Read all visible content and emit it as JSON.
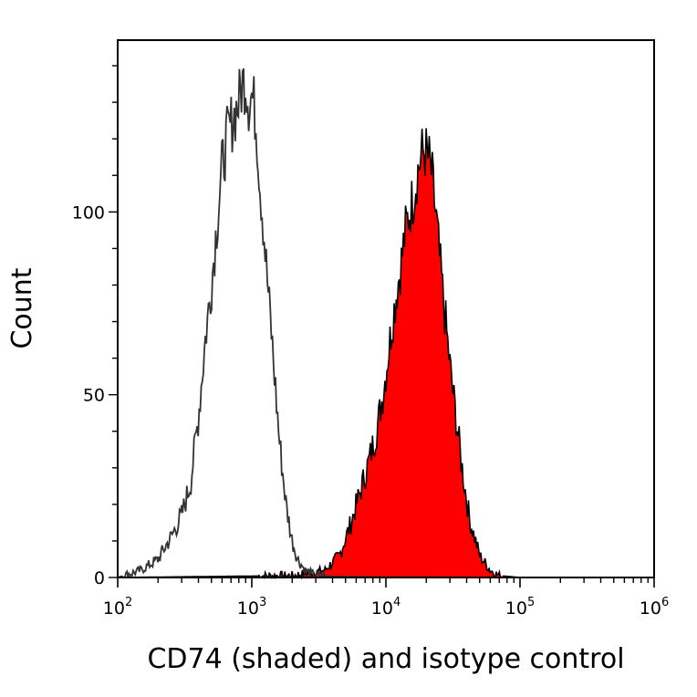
{
  "chart_data": {
    "type": "area",
    "xlabel": "CD74 (shaded) and isotype control",
    "ylabel": "Count",
    "x_scale": "log",
    "xlim": [
      100,
      1000000
    ],
    "ylim": [
      0,
      147
    ],
    "x_ticks": [
      {
        "base": "10",
        "exp": "2",
        "value": 100
      },
      {
        "base": "10",
        "exp": "3",
        "value": 1000
      },
      {
        "base": "10",
        "exp": "4",
        "value": 10000
      },
      {
        "base": "10",
        "exp": "5",
        "value": 100000
      },
      {
        "base": "10",
        "exp": "6",
        "value": 1000000
      }
    ],
    "y_ticks": [
      {
        "label": "0",
        "value": 0
      },
      {
        "label": "50",
        "value": 50
      },
      {
        "label": "100",
        "value": 100
      }
    ],
    "grid": false,
    "legend": "none",
    "series": [
      {
        "style": "outline",
        "color": "#333333",
        "x": [
          100,
          150,
          200,
          250,
          300,
          350,
          400,
          450,
          500,
          550,
          600,
          650,
          700,
          750,
          800,
          850,
          900,
          950,
          1000,
          1050,
          1100,
          1150,
          1200,
          1300,
          1400,
          1500,
          1600,
          1800,
          2000,
          2200,
          2500,
          3000,
          4000,
          6000,
          10000,
          100000,
          1000000
        ],
        "y": [
          0,
          2,
          5,
          11,
          17,
          26,
          44,
          65,
          80,
          97,
          112,
          120,
          124,
          127,
          130,
          135,
          136,
          130,
          132,
          128,
          120,
          108,
          100,
          82,
          67,
          52,
          38,
          20,
          10,
          5,
          2,
          0.5,
          0.3,
          0.2,
          0.1,
          0,
          0
        ]
      },
      {
        "style": "filled",
        "color": "#ff0000",
        "outline": "#000000",
        "x": [
          100,
          2000,
          3500,
          4500,
          5500,
          6500,
          7500,
          8500,
          9500,
          10000,
          11000,
          12000,
          13000,
          14000,
          15000,
          16000,
          17000,
          18000,
          19000,
          20000,
          21000,
          22000,
          23000,
          24000,
          25000,
          27000,
          30000,
          33000,
          37000,
          42000,
          50000,
          60000,
          70000,
          100000,
          1000000
        ],
        "y": [
          0,
          0.5,
          2,
          6,
          15,
          24,
          32,
          40,
          50,
          56,
          68,
          78,
          86,
          95,
          100,
          104,
          110,
          114,
          117,
          116,
          114,
          110,
          103,
          96,
          88,
          75,
          58,
          45,
          30,
          16,
          6,
          2,
          0.5,
          0,
          0
        ]
      }
    ]
  }
}
